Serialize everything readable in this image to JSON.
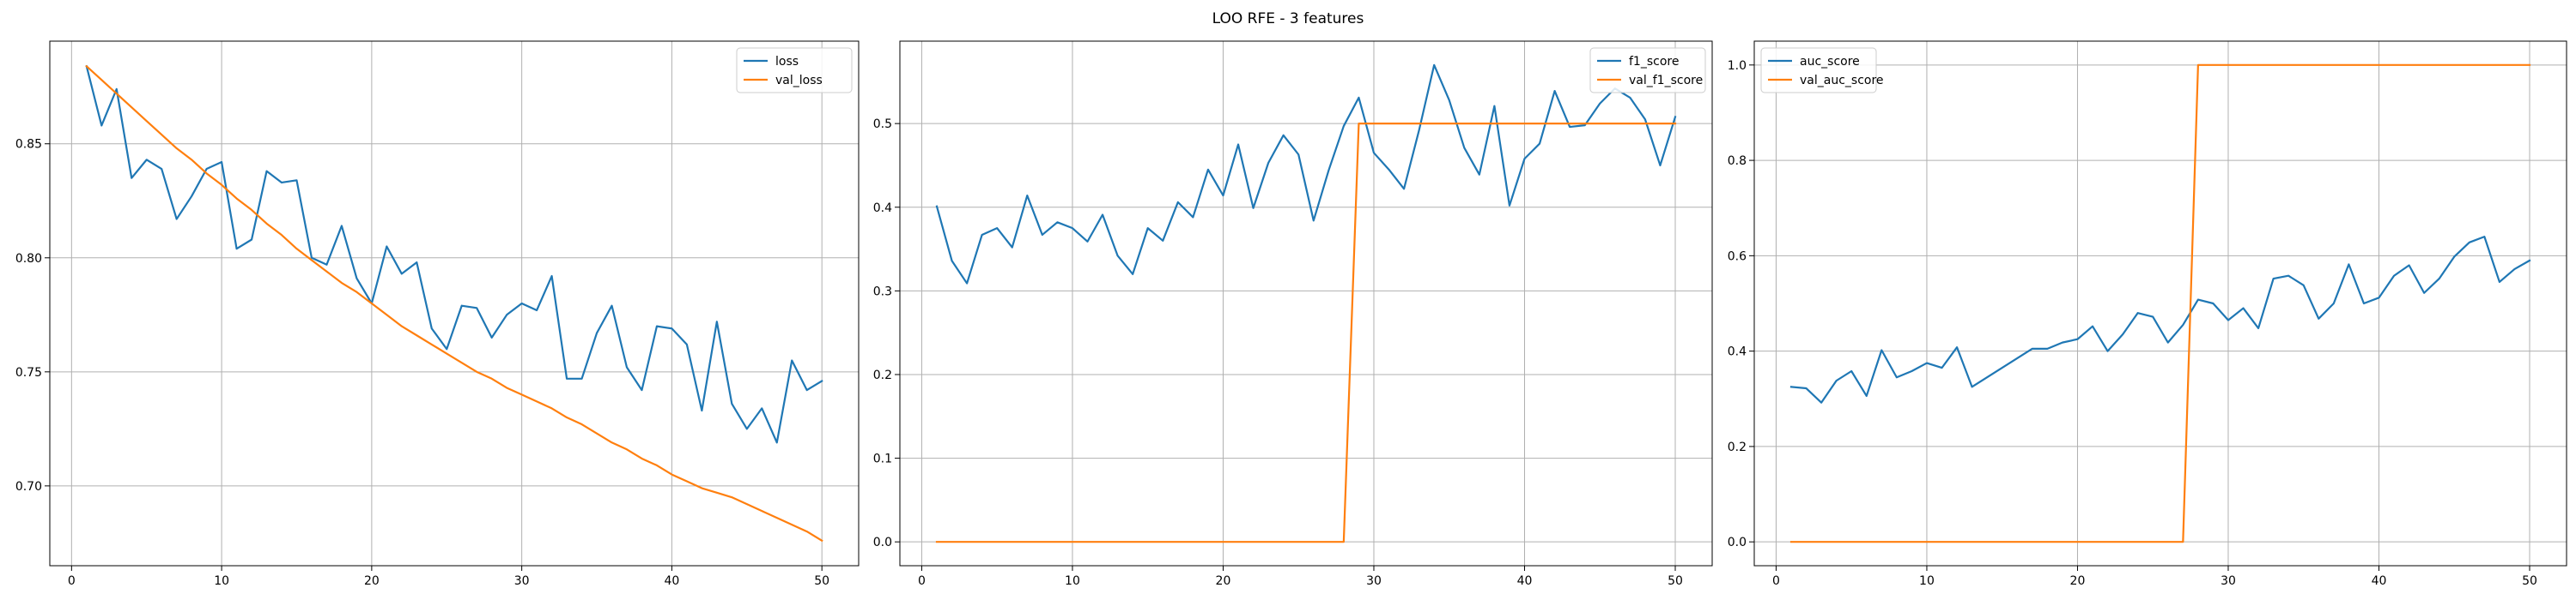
{
  "figure": {
    "title": "LOO RFE - 3 features"
  },
  "colors": {
    "series1": "#1f77b4",
    "series2": "#ff7f0e",
    "grid": "#b0b0b0",
    "axis": "#000000"
  },
  "chart_data": [
    {
      "type": "line",
      "title": "",
      "xlabel": "",
      "ylabel": "",
      "xlim": [
        -1.45,
        52.45
      ],
      "ylim": [
        0.665,
        0.895
      ],
      "xticks": [
        0,
        10,
        20,
        30,
        40,
        50
      ],
      "yticks": [
        0.7,
        0.75,
        0.8,
        0.85
      ],
      "ytick_labels": [
        "0.70",
        "0.75",
        "0.80",
        "0.85"
      ],
      "grid": true,
      "legend_position": "upper right",
      "x": [
        1,
        2,
        3,
        4,
        5,
        6,
        7,
        8,
        9,
        10,
        11,
        12,
        13,
        14,
        15,
        16,
        17,
        18,
        19,
        20,
        21,
        22,
        23,
        24,
        25,
        26,
        27,
        28,
        29,
        30,
        31,
        32,
        33,
        34,
        35,
        36,
        37,
        38,
        39,
        40,
        41,
        42,
        43,
        44,
        45,
        46,
        47,
        48,
        49,
        50
      ],
      "series": [
        {
          "name": "loss",
          "color": "#1f77b4",
          "values": [
            0.884,
            0.858,
            0.874,
            0.835,
            0.843,
            0.839,
            0.817,
            0.827,
            0.839,
            0.842,
            0.804,
            0.808,
            0.838,
            0.833,
            0.834,
            0.8,
            0.797,
            0.814,
            0.791,
            0.78,
            0.805,
            0.793,
            0.798,
            0.769,
            0.76,
            0.779,
            0.778,
            0.765,
            0.775,
            0.78,
            0.777,
            0.792,
            0.747,
            0.747,
            0.767,
            0.779,
            0.752,
            0.742,
            0.77,
            0.769,
            0.762,
            0.733,
            0.772,
            0.736,
            0.725,
            0.734,
            0.719,
            0.755,
            0.742,
            0.746
          ]
        },
        {
          "name": "val_loss",
          "color": "#ff7f0e",
          "values": [
            0.884,
            0.878,
            0.872,
            0.866,
            0.86,
            0.854,
            0.848,
            0.843,
            0.837,
            0.832,
            0.826,
            0.821,
            0.815,
            0.81,
            0.804,
            0.799,
            0.794,
            0.789,
            0.785,
            0.78,
            0.775,
            0.77,
            0.766,
            0.762,
            0.758,
            0.754,
            0.75,
            0.747,
            0.743,
            0.74,
            0.737,
            0.734,
            0.73,
            0.727,
            0.723,
            0.719,
            0.716,
            0.712,
            0.709,
            0.705,
            0.702,
            0.699,
            0.697,
            0.695,
            0.692,
            0.689,
            0.686,
            0.683,
            0.68,
            0.676
          ]
        }
      ]
    },
    {
      "type": "line",
      "title": "",
      "xlabel": "",
      "ylabel": "",
      "xlim": [
        -1.45,
        52.45
      ],
      "ylim": [
        -0.0285,
        0.5985
      ],
      "xticks": [
        0,
        10,
        20,
        30,
        40,
        50
      ],
      "yticks": [
        0.0,
        0.1,
        0.2,
        0.3,
        0.4,
        0.5
      ],
      "ytick_labels": [
        "0.0",
        "0.1",
        "0.2",
        "0.3",
        "0.4",
        "0.5"
      ],
      "grid": true,
      "legend_position": "upper right",
      "x": [
        1,
        2,
        3,
        4,
        5,
        6,
        7,
        8,
        9,
        10,
        11,
        12,
        13,
        14,
        15,
        16,
        17,
        18,
        19,
        20,
        21,
        22,
        23,
        24,
        25,
        26,
        27,
        28,
        29,
        30,
        31,
        32,
        33,
        34,
        35,
        36,
        37,
        38,
        39,
        40,
        41,
        42,
        43,
        44,
        45,
        46,
        47,
        48,
        49,
        50
      ],
      "series": [
        {
          "name": "f1_score",
          "color": "#1f77b4",
          "values": [
            0.401,
            0.336,
            0.309,
            0.367,
            0.375,
            0.352,
            0.414,
            0.367,
            0.382,
            0.375,
            0.359,
            0.391,
            0.342,
            0.32,
            0.375,
            0.36,
            0.406,
            0.388,
            0.445,
            0.414,
            0.475,
            0.399,
            0.453,
            0.486,
            0.463,
            0.384,
            0.444,
            0.497,
            0.531,
            0.465,
            0.445,
            0.422,
            0.492,
            0.57,
            0.528,
            0.471,
            0.439,
            0.521,
            0.402,
            0.458,
            0.476,
            0.539,
            0.496,
            0.498,
            0.524,
            0.542,
            0.531,
            0.505,
            0.45,
            0.508
          ]
        },
        {
          "name": "val_f1_score",
          "color": "#ff7f0e",
          "values": [
            0.0,
            0.0,
            0.0,
            0.0,
            0.0,
            0.0,
            0.0,
            0.0,
            0.0,
            0.0,
            0.0,
            0.0,
            0.0,
            0.0,
            0.0,
            0.0,
            0.0,
            0.0,
            0.0,
            0.0,
            0.0,
            0.0,
            0.0,
            0.0,
            0.0,
            0.0,
            0.0,
            0.0,
            0.5,
            0.5,
            0.5,
            0.5,
            0.5,
            0.5,
            0.5,
            0.5,
            0.5,
            0.5,
            0.5,
            0.5,
            0.5,
            0.5,
            0.5,
            0.5,
            0.5,
            0.5,
            0.5,
            0.5,
            0.5,
            0.5
          ]
        }
      ]
    },
    {
      "type": "line",
      "title": "",
      "xlabel": "",
      "ylabel": "",
      "xlim": [
        -1.45,
        52.45
      ],
      "ylim": [
        -0.05,
        1.05
      ],
      "xticks": [
        0,
        10,
        20,
        30,
        40,
        50
      ],
      "yticks": [
        0.0,
        0.2,
        0.4,
        0.6,
        0.8,
        1.0
      ],
      "ytick_labels": [
        "0.0",
        "0.2",
        "0.4",
        "0.6",
        "0.8",
        "1.0"
      ],
      "grid": true,
      "legend_position": "upper left",
      "x": [
        1,
        2,
        3,
        4,
        5,
        6,
        7,
        8,
        9,
        10,
        11,
        12,
        13,
        14,
        15,
        16,
        17,
        18,
        19,
        20,
        21,
        22,
        23,
        24,
        25,
        26,
        27,
        28,
        29,
        30,
        31,
        32,
        33,
        34,
        35,
        36,
        37,
        38,
        39,
        40,
        41,
        42,
        43,
        44,
        45,
        46,
        47,
        48,
        49,
        50
      ],
      "series": [
        {
          "name": "auc_score",
          "color": "#1f77b4",
          "values": [
            0.325,
            0.322,
            0.292,
            0.338,
            0.358,
            0.306,
            0.402,
            0.345,
            0.358,
            0.375,
            0.365,
            0.408,
            0.325,
            0.345,
            0.365,
            0.385,
            0.405,
            0.405,
            0.418,
            0.425,
            0.452,
            0.4,
            0.435,
            0.48,
            0.472,
            0.418,
            0.455,
            0.508,
            0.5,
            0.465,
            0.49,
            0.448,
            0.552,
            0.558,
            0.538,
            0.468,
            0.5,
            0.582,
            0.5,
            0.512,
            0.558,
            0.58,
            0.522,
            0.552,
            0.598,
            0.628,
            0.64,
            0.545,
            0.572,
            0.59
          ]
        },
        {
          "name": "val_auc_score",
          "color": "#ff7f0e",
          "values": [
            0.0,
            0.0,
            0.0,
            0.0,
            0.0,
            0.0,
            0.0,
            0.0,
            0.0,
            0.0,
            0.0,
            0.0,
            0.0,
            0.0,
            0.0,
            0.0,
            0.0,
            0.0,
            0.0,
            0.0,
            0.0,
            0.0,
            0.0,
            0.0,
            0.0,
            0.0,
            0.0,
            1.0,
            1.0,
            1.0,
            1.0,
            1.0,
            1.0,
            1.0,
            1.0,
            1.0,
            1.0,
            1.0,
            1.0,
            1.0,
            1.0,
            1.0,
            1.0,
            1.0,
            1.0,
            1.0,
            1.0,
            1.0,
            1.0,
            1.0
          ]
        }
      ]
    }
  ]
}
